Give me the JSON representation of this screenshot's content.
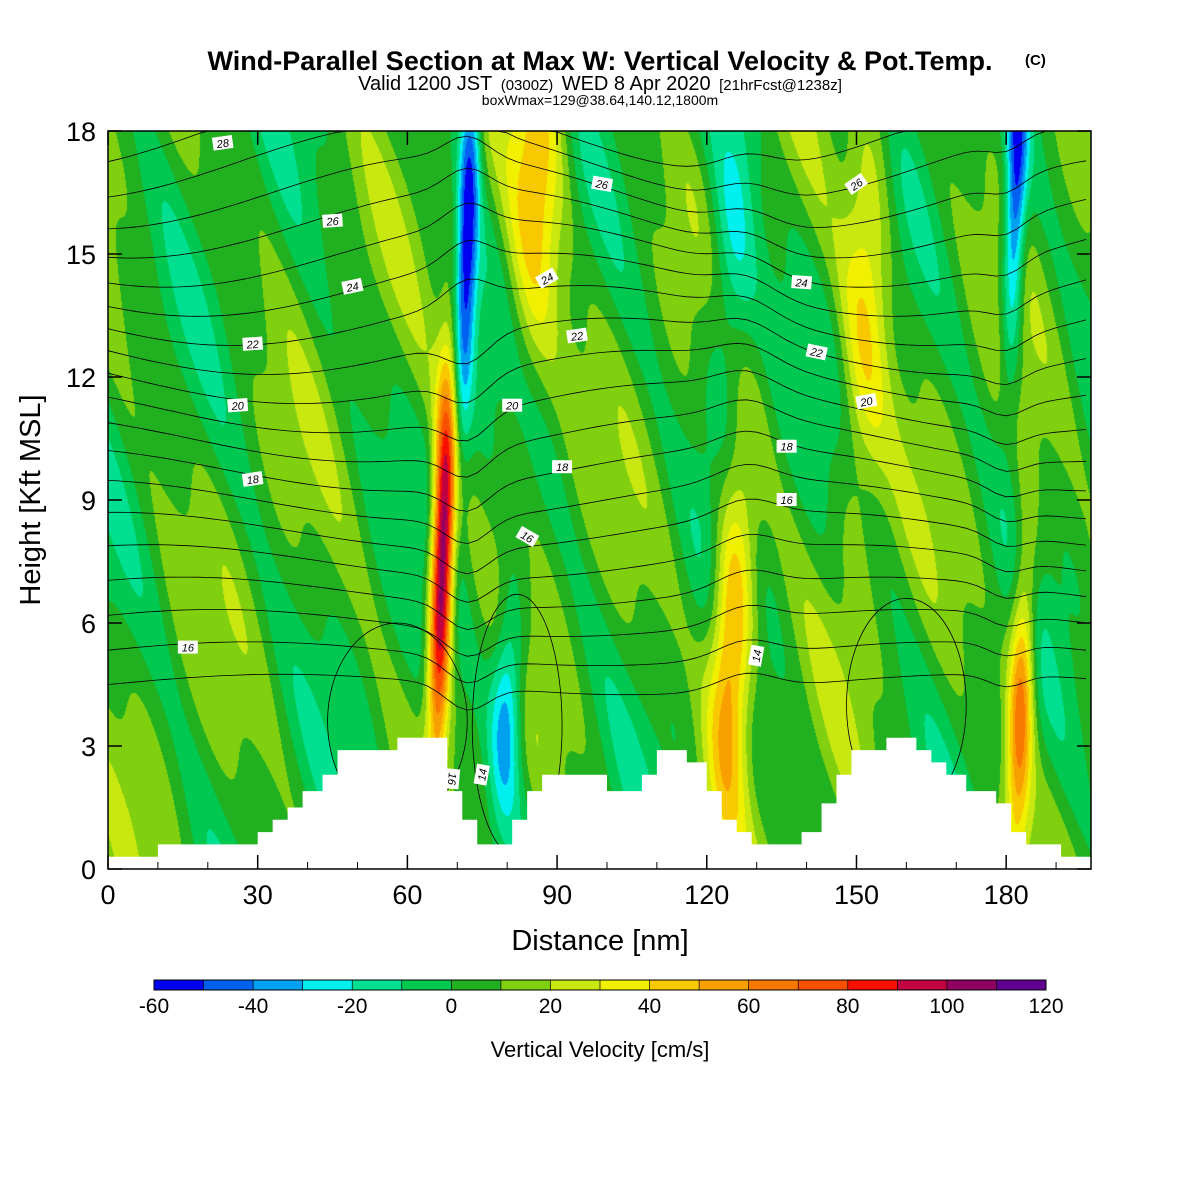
{
  "title": {
    "main": "Wind-Parallel Section at Max W: Vertical Velocity & Pot.Temp.",
    "main_suffix": "(C)",
    "line2_a": "Valid 1200 JST",
    "line2_b": "(0300Z)",
    "line2_c": "WED 8 Apr 2020",
    "line2_d": "[21hrFcst@1238z]",
    "line3": "boxWmax=129@38.64,140.12,1800m"
  },
  "chart_data": {
    "type": "heatmap",
    "xlabel": "Distance [nm]",
    "ylabel": "Height [Kft MSL]",
    "xlim": [
      0,
      197
    ],
    "ylim": [
      0,
      18
    ],
    "xticks": [
      0,
      30,
      60,
      90,
      120,
      150,
      180
    ],
    "yticks": [
      0,
      3,
      6,
      9,
      12,
      15,
      18
    ],
    "colorbar": {
      "title": "Vertical Velocity [cm/s]",
      "bounds": [
        -60,
        -50,
        -40,
        -30,
        -20,
        -10,
        0,
        10,
        20,
        30,
        40,
        50,
        60,
        70,
        80,
        90,
        100,
        110,
        120
      ],
      "tick_labels": [
        -60,
        -40,
        -20,
        0,
        20,
        40,
        60,
        80,
        100,
        120
      ],
      "colors": [
        "#0000f0",
        "#0060f0",
        "#00a0f0",
        "#00f0f0",
        "#00e090",
        "#00c850",
        "#20b020",
        "#80d010",
        "#c8e810",
        "#f0f000",
        "#f8c800",
        "#f8a000",
        "#f87800",
        "#f85000",
        "#f81000",
        "#c00040",
        "#900060",
        "#600090"
      ]
    },
    "terrain_kft": [
      [
        0,
        0.3
      ],
      [
        10,
        0.3
      ],
      [
        10,
        0.6
      ],
      [
        30,
        0.6
      ],
      [
        30,
        0.9
      ],
      [
        33,
        0.9
      ],
      [
        33,
        1.2
      ],
      [
        36,
        1.2
      ],
      [
        36,
        1.5
      ],
      [
        39,
        1.5
      ],
      [
        39,
        1.9
      ],
      [
        43,
        1.9
      ],
      [
        43,
        2.3
      ],
      [
        46,
        2.3
      ],
      [
        46,
        2.9
      ],
      [
        58,
        2.9
      ],
      [
        58,
        3.2
      ],
      [
        68,
        3.2
      ],
      [
        68,
        1.9
      ],
      [
        71,
        1.9
      ],
      [
        71,
        1.2
      ],
      [
        74,
        1.2
      ],
      [
        74,
        0.6
      ],
      [
        81,
        0.6
      ],
      [
        81,
        1.2
      ],
      [
        84,
        1.2
      ],
      [
        84,
        1.9
      ],
      [
        87,
        1.9
      ],
      [
        87,
        2.3
      ],
      [
        100,
        2.3
      ],
      [
        100,
        1.9
      ],
      [
        107,
        1.9
      ],
      [
        107,
        2.3
      ],
      [
        110,
        2.3
      ],
      [
        110,
        2.9
      ],
      [
        116,
        2.9
      ],
      [
        116,
        2.6
      ],
      [
        120,
        2.6
      ],
      [
        120,
        1.9
      ],
      [
        123,
        1.9
      ],
      [
        123,
        1.2
      ],
      [
        126,
        1.2
      ],
      [
        126,
        0.9
      ],
      [
        129,
        0.9
      ],
      [
        129,
        0.6
      ],
      [
        139,
        0.6
      ],
      [
        139,
        0.9
      ],
      [
        143,
        0.9
      ],
      [
        143,
        1.6
      ],
      [
        146,
        1.6
      ],
      [
        146,
        2.3
      ],
      [
        149,
        2.3
      ],
      [
        149,
        2.9
      ],
      [
        156,
        2.9
      ],
      [
        156,
        3.2
      ],
      [
        162,
        3.2
      ],
      [
        162,
        2.9
      ],
      [
        165,
        2.9
      ],
      [
        165,
        2.6
      ],
      [
        168,
        2.6
      ],
      [
        168,
        2.3
      ],
      [
        172,
        2.3
      ],
      [
        172,
        1.9
      ],
      [
        178,
        1.9
      ],
      [
        178,
        1.6
      ],
      [
        181,
        1.6
      ],
      [
        181,
        0.9
      ],
      [
        184,
        0.9
      ],
      [
        184,
        0.6
      ],
      [
        191,
        0.6
      ],
      [
        191,
        0.3
      ],
      [
        197,
        0.3
      ]
    ],
    "w_features": [
      {
        "x": 67,
        "z": 7.5,
        "w": 115,
        "sx": 1.6,
        "sz": 3.2
      },
      {
        "x": 125,
        "z": 5.5,
        "w": 62,
        "sx": 3.0,
        "sz": 3.0
      },
      {
        "x": 183,
        "z": 4.0,
        "w": 62,
        "sx": 1.8,
        "sz": 2.6
      },
      {
        "x": 72,
        "z": 15.5,
        "w": -60,
        "sx": 1.5,
        "sz": 3.5
      },
      {
        "x": 182,
        "z": 16.5,
        "w": -58,
        "sx": 1.5,
        "sz": 3.0
      },
      {
        "x": 80,
        "z": 4.0,
        "w": -45,
        "sx": 2.3,
        "sz": 2.0
      },
      {
        "x": 86,
        "z": 17,
        "w": 42,
        "sx": 4.0,
        "sz": 3.5
      },
      {
        "x": 152,
        "z": 14,
        "w": 32,
        "sx": 3.5,
        "sz": 4.0
      },
      {
        "x": 125,
        "z": 15,
        "w": -28,
        "sx": 3.5,
        "sz": 3.5
      }
    ],
    "contour_labels": [
      {
        "text": "28",
        "x": 23,
        "z": 17.7,
        "rot": -8
      },
      {
        "text": "26",
        "x": 45,
        "z": 15.8,
        "rot": -4
      },
      {
        "text": "24",
        "x": 49,
        "z": 14.2,
        "rot": -12
      },
      {
        "text": "22",
        "x": 29,
        "z": 12.8,
        "rot": -4
      },
      {
        "text": "20",
        "x": 26,
        "z": 11.3,
        "rot": -4
      },
      {
        "text": "18",
        "x": 29,
        "z": 9.5,
        "rot": -8
      },
      {
        "text": "16",
        "x": 16,
        "z": 5.4,
        "rot": 0
      },
      {
        "text": "26",
        "x": 99,
        "z": 16.7,
        "rot": 10
      },
      {
        "text": "24",
        "x": 88,
        "z": 14.4,
        "rot": -30
      },
      {
        "text": "22",
        "x": 94,
        "z": 13.0,
        "rot": -8
      },
      {
        "text": "20",
        "x": 81,
        "z": 11.3,
        "rot": 0
      },
      {
        "text": "18",
        "x": 91,
        "z": 9.8,
        "rot": 0
      },
      {
        "text": "16",
        "x": 84,
        "z": 8.1,
        "rot": 30
      },
      {
        "text": "14",
        "x": 75,
        "z": 2.3,
        "rot": -80
      },
      {
        "text": "16",
        "x": 69,
        "z": 2.2,
        "rot": 95
      },
      {
        "text": "24",
        "x": 139,
        "z": 14.3,
        "rot": 4
      },
      {
        "text": "22",
        "x": 142,
        "z": 12.6,
        "rot": 12
      },
      {
        "text": "20",
        "x": 152,
        "z": 11.4,
        "rot": -10
      },
      {
        "text": "18",
        "x": 136,
        "z": 10.3,
        "rot": 0
      },
      {
        "text": "16",
        "x": 136,
        "z": 9.0,
        "rot": 0
      },
      {
        "text": "14",
        "x": 130,
        "z": 5.2,
        "rot": -80
      },
      {
        "text": "26",
        "x": 150,
        "z": 16.7,
        "rot": -35
      }
    ]
  }
}
